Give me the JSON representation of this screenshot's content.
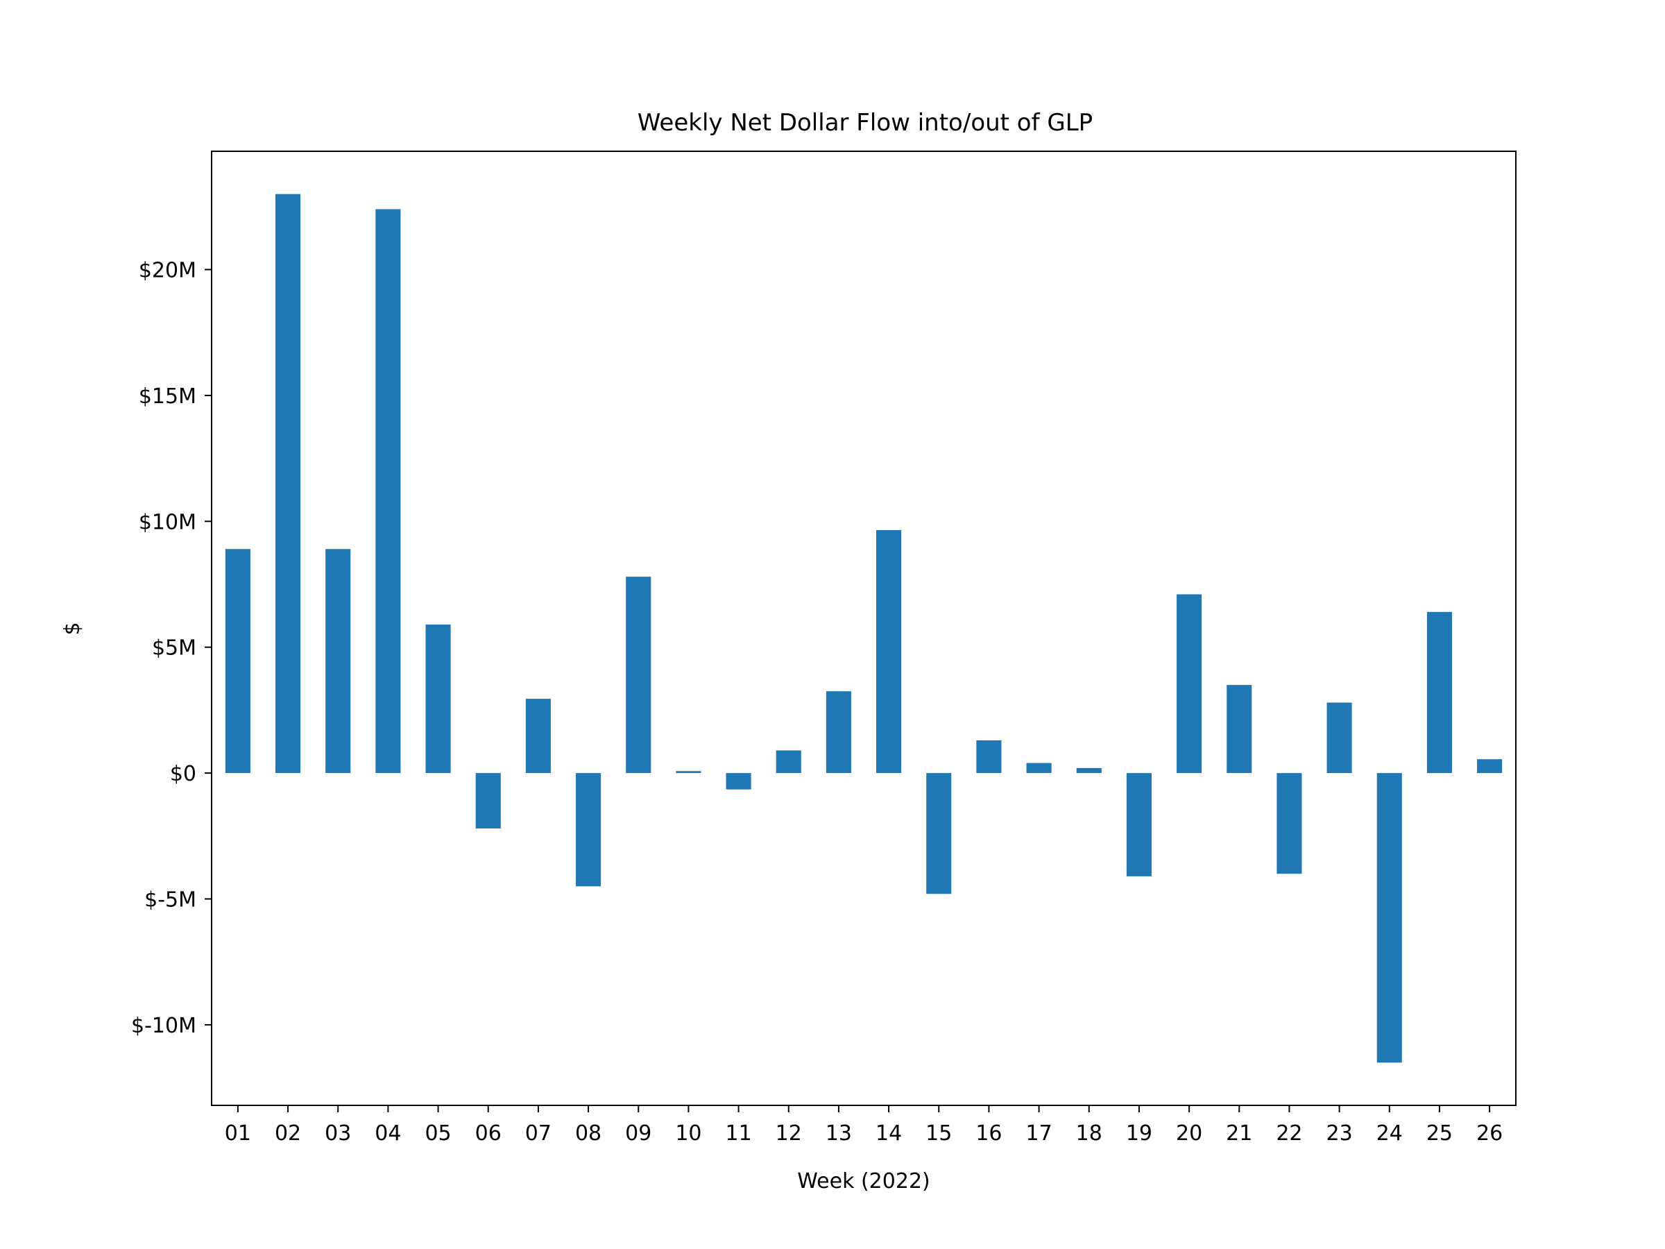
{
  "chart_data": {
    "type": "bar",
    "title": "Weekly Net Dollar Flow into/out of GLP",
    "xlabel": "Week (2022)",
    "ylabel": "$",
    "categories": [
      "01",
      "02",
      "03",
      "04",
      "05",
      "06",
      "07",
      "08",
      "09",
      "10",
      "11",
      "12",
      "13",
      "14",
      "15",
      "16",
      "17",
      "18",
      "19",
      "20",
      "21",
      "22",
      "23",
      "24",
      "25",
      "26"
    ],
    "values": [
      8.9,
      23.0,
      8.9,
      22.4,
      5.9,
      -2.2,
      2.95,
      -4.5,
      7.8,
      0.08,
      -0.65,
      0.9,
      3.25,
      9.65,
      -4.8,
      1.3,
      0.4,
      0.2,
      -4.1,
      7.1,
      3.5,
      -4.0,
      2.8,
      -11.5,
      6.4,
      0.55
    ],
    "value_unit": "$M",
    "ylim": [
      -13.2,
      24.7
    ],
    "yticks": [
      -10,
      -5,
      0,
      5,
      10,
      15,
      20
    ],
    "ytick_labels": [
      "$-10M",
      "$-5M",
      "$0",
      "$5M",
      "$10M",
      "$15M",
      "$20M"
    ],
    "bar_color": "#1f77b4",
    "grid": false,
    "legend": "none"
  }
}
